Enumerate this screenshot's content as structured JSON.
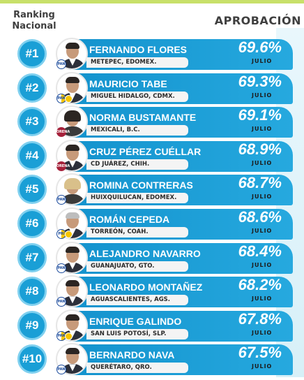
{
  "header": {
    "ranking_label": "Ranking\nNacional",
    "aprobacion_label": "APROBACIÓN"
  },
  "colors": {
    "accent_blue": "#1a9fd6",
    "top_bar": "#c8e06a",
    "text_dark": "#3f3f3f"
  },
  "rows": [
    {
      "rank": "#1",
      "name": "FERNANDO FLORES",
      "location": "METEPEC, EDOMEX.",
      "percent": "69.6%",
      "month": "JULIO",
      "party": "PAN",
      "party_icon": "pan-logo-icon"
    },
    {
      "rank": "#2",
      "name": "MAURICIO TABE",
      "location": "MIGUEL HIDALGO, CDMX.",
      "percent": "69.3%",
      "month": "JULIO",
      "party": "PAN",
      "party_icon": "coalition-logo-icon"
    },
    {
      "rank": "#3",
      "name": "NORMA BUSTAMANTE",
      "location": "MEXICALI, B.C.",
      "percent": "69.1%",
      "month": "JULIO",
      "party": "MORENA",
      "party_icon": "morena-logo-icon"
    },
    {
      "rank": "#4",
      "name": "CRUZ PÉREZ CUÉLLAR",
      "location": "CD JUÁREZ, CHIH.",
      "percent": "68.9%",
      "month": "JULIO",
      "party": "MORENA",
      "party_icon": "morena-logo-icon"
    },
    {
      "rank": "#5",
      "name": "ROMINA CONTRERAS",
      "location": "HUIXQUILUCAN, EDOMEX.",
      "percent": "68.7%",
      "month": "JULIO",
      "party": "PAN",
      "party_icon": "pan-logo-icon"
    },
    {
      "rank": "#6",
      "name": "ROMÁN CEPEDA",
      "location": "TORREÓN, COAH.",
      "percent": "68.6%",
      "month": "JULIO",
      "party": "PRI",
      "party_icon": "coalition-logo-icon"
    },
    {
      "rank": "#7",
      "name": "ALEJANDRO NAVARRO",
      "location": "GUANAJUATO, GTO.",
      "percent": "68.4%",
      "month": "JULIO",
      "party": "PAN",
      "party_icon": "pan-logo-icon"
    },
    {
      "rank": "#8",
      "name": "LEONARDO MONTAÑEZ",
      "location": "AGUASCALIENTES, AGS.",
      "percent": "68.2%",
      "month": "JULIO",
      "party": "PAN",
      "party_icon": "pan-logo-icon"
    },
    {
      "rank": "#9",
      "name": "ENRIQUE GALINDO",
      "location": "SAN LUIS POTOSÍ, SLP.",
      "percent": "67.8%",
      "month": "JULIO",
      "party": "PAN",
      "party_icon": "coalition-logo-icon"
    },
    {
      "rank": "#10",
      "name": "BERNARDO NAVA",
      "location": "QUERÉTARO, QRO.",
      "percent": "67.5%",
      "month": "JULIO",
      "party": "PAN",
      "party_icon": "pan-logo-icon"
    }
  ]
}
